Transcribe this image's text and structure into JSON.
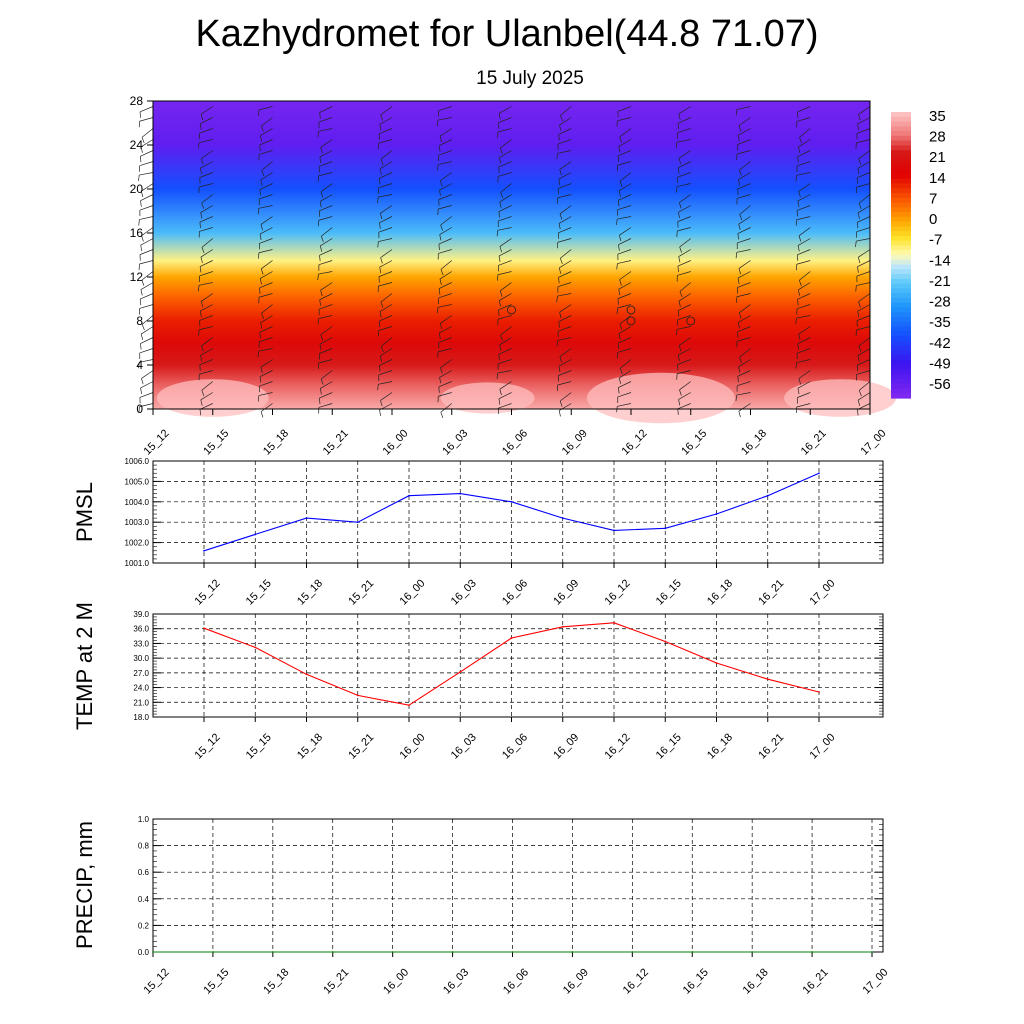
{
  "page": {
    "title": "Kazhydromet for Ulanbel(44.8 71.07)",
    "subtitle": "15 July 2025"
  },
  "colors": {
    "pmsl_line": "#0000ff",
    "temp_line": "#ff0000",
    "precip_line": "#008000",
    "grid": "#000000"
  },
  "chart_data": [
    {
      "type": "heatmap",
      "name": "vertical-section",
      "x": [
        "15_12",
        "15_15",
        "15_18",
        "15_21",
        "16_00",
        "16_03",
        "16_06",
        "16_09",
        "16_12",
        "16_15",
        "16_18",
        "16_21",
        "17_00"
      ],
      "y_ticks": [
        0,
        4,
        8,
        12,
        16,
        20,
        24,
        28
      ],
      "ylim": [
        0,
        28
      ],
      "colorbar": {
        "labels": [
          "35",
          "28",
          "21",
          "14",
          "7",
          "0",
          "-7",
          "-14",
          "-21",
          "-28",
          "-35",
          "-42",
          "-49",
          "-56"
        ],
        "range": [
          -62,
          38
        ]
      },
      "levels": [
        0,
        2,
        4,
        6,
        8,
        10,
        12,
        13.5,
        16,
        20,
        24,
        28
      ],
      "level_temps": [
        35,
        29,
        24,
        19,
        13,
        7,
        0,
        -10,
        -24,
        -40,
        -56,
        -60
      ],
      "barbs": "wind barbs at every time step and level",
      "calm_markers": [
        {
          "x": "16_06",
          "y": 9
        },
        {
          "x": "16_12",
          "y": 9
        },
        {
          "x": "16_12",
          "y": 8
        },
        {
          "x": "16_15",
          "y": 8
        }
      ]
    },
    {
      "type": "line",
      "name": "pmsl",
      "ylabel": "PMSL",
      "x": [
        "15_12",
        "15_15",
        "15_18",
        "15_21",
        "16_00",
        "16_03",
        "16_06",
        "16_09",
        "16_12",
        "16_15",
        "16_18",
        "16_21",
        "17_00"
      ],
      "series": [
        {
          "values": [
            1001.6,
            1002.4,
            1003.2,
            1003.0,
            1004.3,
            1004.4,
            1004.0,
            1003.2,
            1002.6,
            1002.7,
            1003.4,
            1004.3,
            1005.4
          ]
        }
      ],
      "ylim": [
        1001.0,
        1006.0
      ],
      "y_ticks": [
        "1001.0",
        "1002.0",
        "1003.0",
        "1004.0",
        "1005.0",
        "1006.0"
      ]
    },
    {
      "type": "line",
      "name": "temp",
      "ylabel": "TEMP at 2 M",
      "x": [
        "15_12",
        "15_15",
        "15_18",
        "15_21",
        "16_00",
        "16_03",
        "16_06",
        "16_09",
        "16_12",
        "16_15",
        "16_18",
        "16_21",
        "17_00"
      ],
      "series": [
        {
          "values": [
            36.1,
            32.2,
            26.7,
            22.4,
            20.4,
            27.2,
            34.1,
            36.4,
            37.2,
            33.4,
            29.0,
            25.7,
            23.1
          ]
        }
      ],
      "ylim": [
        18.0,
        39.0
      ],
      "y_ticks": [
        "18.0",
        "21.0",
        "24.0",
        "27.0",
        "30.0",
        "33.0",
        "36.0",
        "39.0"
      ]
    },
    {
      "type": "line",
      "name": "precip",
      "ylabel": "PRECIP, mm",
      "x": [
        "15_12",
        "15_15",
        "15_18",
        "15_21",
        "16_00",
        "16_03",
        "16_06",
        "16_09",
        "16_12",
        "16_15",
        "16_18",
        "16_21",
        "17_00"
      ],
      "series": [
        {
          "values": [
            0,
            0,
            0,
            0,
            0,
            0,
            0,
            0,
            0,
            0,
            0,
            0,
            0
          ]
        }
      ],
      "ylim": [
        0.0,
        1.0
      ],
      "y_ticks": [
        "0.0",
        "0.2",
        "0.4",
        "0.6",
        "0.8",
        "1.0"
      ]
    }
  ]
}
